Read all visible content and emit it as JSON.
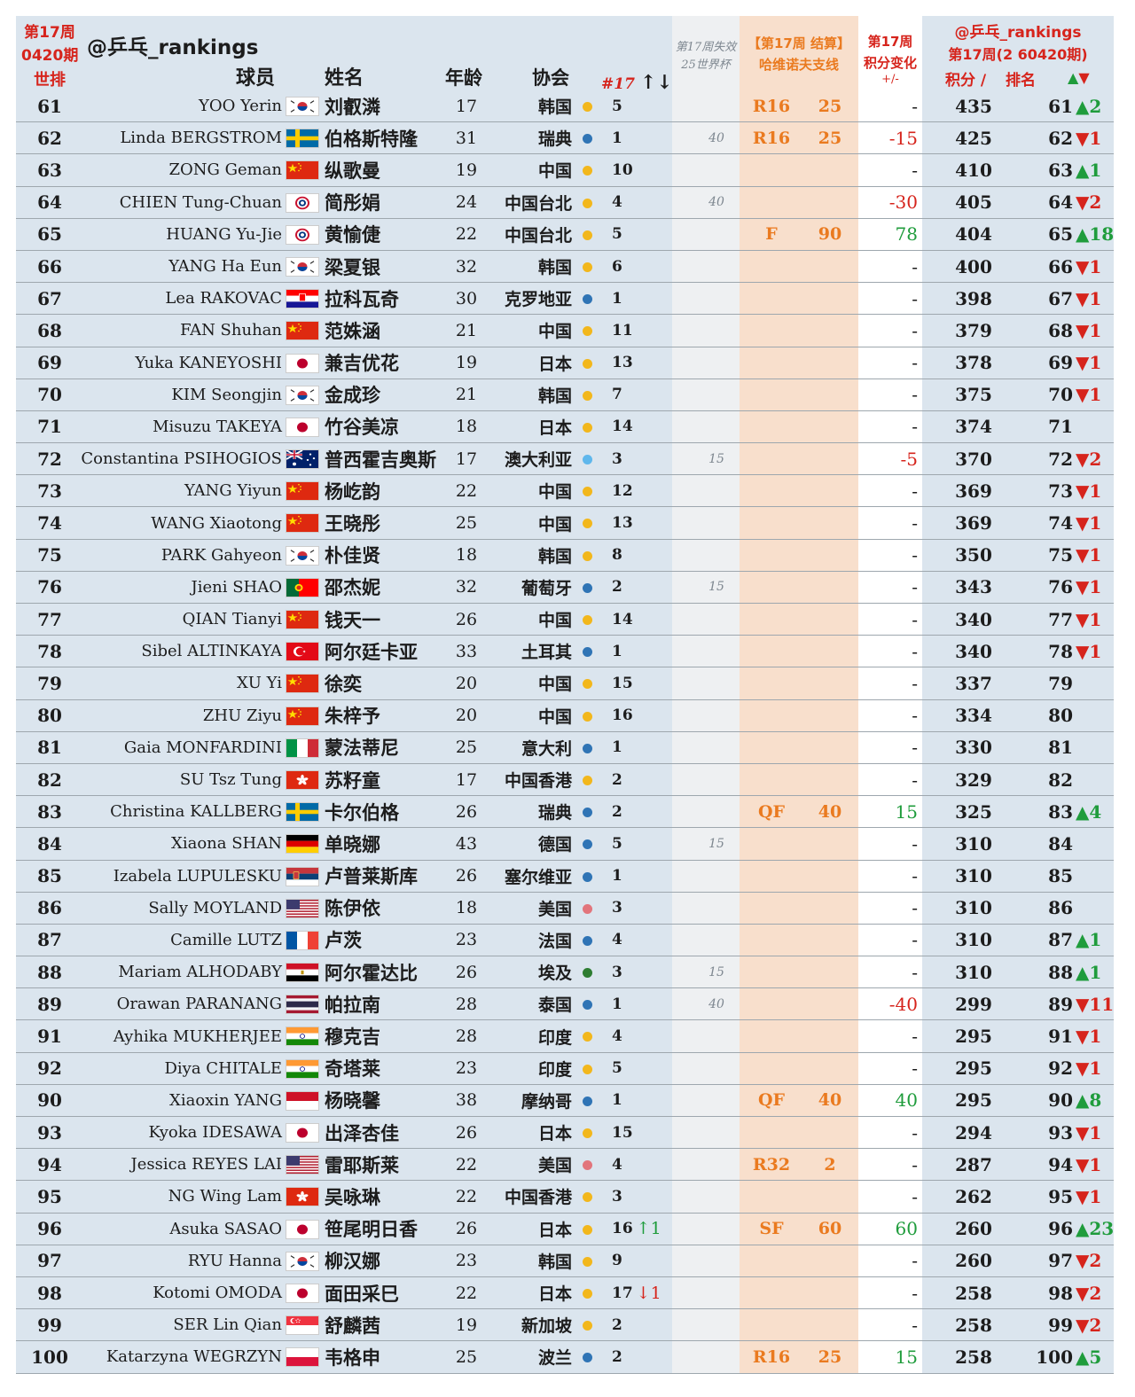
{
  "header": {
    "week_line1": "第17周",
    "week_line2": "0420期",
    "world_rank": "世排",
    "handle": "@乒乓_rankings",
    "player": "球员",
    "name": "姓名",
    "age": "年龄",
    "association": "协会",
    "count_hash": "#17",
    "count_arrows": "↑↓",
    "lost_line1": "第17周失效",
    "lost_line2": "25世界杯",
    "result_line1": "【第17周 结算】",
    "result_line2": "哈维诺夫支线",
    "change_line1": "第17周",
    "change_line2": "积分变化",
    "change_line3": "+/-",
    "new_line1": "@乒乓_rankings",
    "new_line2": "第17周(2 60420期)",
    "new_points": "积分 /",
    "new_rank": "排名",
    "new_arrows": "▲▼"
  },
  "colors": {
    "red": "#d6241c",
    "orange": "#ea7a1f",
    "green": "#1f9c3c",
    "row_bg": "#dbe5ee",
    "result_bg": "#f8dfcc",
    "dot_yellow": "#f2b71c",
    "dot_blue": "#2f74b5",
    "dot_lightblue": "#5fb7ec",
    "dot_pink": "#e2757c",
    "dot_green": "#2e7d32"
  },
  "rows": [
    {
      "rank": "61",
      "en": "YOO Yerin",
      "flag": "kr",
      "cn": "刘叡潾",
      "age": "17",
      "assoc": "韩国",
      "dot": "yellow",
      "cnt": "5",
      "ch": "",
      "chdir": "",
      "lost": "",
      "round": "R16",
      "rpts": "25",
      "change": "-",
      "cdir": "",
      "pts": "435",
      "nrank": "61",
      "mv": "▲2",
      "mdir": "up"
    },
    {
      "rank": "62",
      "en": "Linda BERGSTROM",
      "flag": "se",
      "cn": "伯格斯特隆",
      "age": "31",
      "assoc": "瑞典",
      "dot": "blue",
      "cnt": "1",
      "ch": "",
      "chdir": "",
      "lost": "40",
      "round": "R16",
      "rpts": "25",
      "change": "-15",
      "cdir": "down",
      "pts": "425",
      "nrank": "62",
      "mv": "▼1",
      "mdir": "down"
    },
    {
      "rank": "63",
      "en": "ZONG Geman",
      "flag": "cn",
      "cn": "纵歌曼",
      "age": "19",
      "assoc": "中国",
      "dot": "yellow",
      "cnt": "10",
      "ch": "",
      "chdir": "",
      "lost": "",
      "round": "",
      "rpts": "",
      "change": "-",
      "cdir": "",
      "pts": "410",
      "nrank": "63",
      "mv": "▲1",
      "mdir": "up"
    },
    {
      "rank": "64",
      "en": "CHIEN Tung-Chuan",
      "flag": "tpe",
      "cn": "简彤娟",
      "age": "24",
      "assoc": "中国台北",
      "dot": "yellow",
      "cnt": "4",
      "ch": "",
      "chdir": "",
      "lost": "40",
      "round": "",
      "rpts": "",
      "change": "-30",
      "cdir": "down",
      "pts": "405",
      "nrank": "64",
      "mv": "▼2",
      "mdir": "down"
    },
    {
      "rank": "65",
      "en": "HUANG Yu-Jie",
      "flag": "tpe",
      "cn": "黄愉倢",
      "age": "22",
      "assoc": "中国台北",
      "dot": "yellow",
      "cnt": "5",
      "ch": "",
      "chdir": "",
      "lost": "",
      "round": "F",
      "rpts": "90",
      "change": "78",
      "cdir": "up",
      "pts": "404",
      "nrank": "65",
      "mv": "▲18",
      "mdir": "up"
    },
    {
      "rank": "66",
      "en": "YANG Ha Eun",
      "flag": "kr",
      "cn": "梁夏银",
      "age": "32",
      "assoc": "韩国",
      "dot": "yellow",
      "cnt": "6",
      "ch": "",
      "chdir": "",
      "lost": "",
      "round": "",
      "rpts": "",
      "change": "-",
      "cdir": "",
      "pts": "400",
      "nrank": "66",
      "mv": "▼1",
      "mdir": "down"
    },
    {
      "rank": "67",
      "en": "Lea RAKOVAC",
      "flag": "hr",
      "cn": "拉科瓦奇",
      "age": "30",
      "assoc": "克罗地亚",
      "dot": "blue",
      "cnt": "1",
      "ch": "",
      "chdir": "",
      "lost": "",
      "round": "",
      "rpts": "",
      "change": "-",
      "cdir": "",
      "pts": "398",
      "nrank": "67",
      "mv": "▼1",
      "mdir": "down"
    },
    {
      "rank": "68",
      "en": "FAN Shuhan",
      "flag": "cn",
      "cn": "范姝涵",
      "age": "21",
      "assoc": "中国",
      "dot": "yellow",
      "cnt": "11",
      "ch": "",
      "chdir": "",
      "lost": "",
      "round": "",
      "rpts": "",
      "change": "-",
      "cdir": "",
      "pts": "379",
      "nrank": "68",
      "mv": "▼1",
      "mdir": "down"
    },
    {
      "rank": "69",
      "en": "Yuka KANEYOSHI",
      "flag": "jp",
      "cn": "兼吉优花",
      "age": "19",
      "assoc": "日本",
      "dot": "yellow",
      "cnt": "13",
      "ch": "",
      "chdir": "",
      "lost": "",
      "round": "",
      "rpts": "",
      "change": "-",
      "cdir": "",
      "pts": "378",
      "nrank": "69",
      "mv": "▼1",
      "mdir": "down"
    },
    {
      "rank": "70",
      "en": "KIM Seongjin",
      "flag": "kr",
      "cn": "金成珍",
      "age": "21",
      "assoc": "韩国",
      "dot": "yellow",
      "cnt": "7",
      "ch": "",
      "chdir": "",
      "lost": "",
      "round": "",
      "rpts": "",
      "change": "-",
      "cdir": "",
      "pts": "375",
      "nrank": "70",
      "mv": "▼1",
      "mdir": "down"
    },
    {
      "rank": "71",
      "en": "Misuzu TAKEYA",
      "flag": "jp",
      "cn": "竹谷美凉",
      "age": "18",
      "assoc": "日本",
      "dot": "yellow",
      "cnt": "14",
      "ch": "",
      "chdir": "",
      "lost": "",
      "round": "",
      "rpts": "",
      "change": "-",
      "cdir": "",
      "pts": "374",
      "nrank": "71",
      "mv": "",
      "mdir": ""
    },
    {
      "rank": "72",
      "en": "Constantina PSIHOGIOS",
      "flag": "au",
      "cn": "普西霍吉奥斯",
      "age": "17",
      "assoc": "澳大利亚",
      "dot": "lightblue",
      "cnt": "3",
      "ch": "",
      "chdir": "",
      "lost": "15",
      "round": "",
      "rpts": "",
      "change": "-5",
      "cdir": "down",
      "pts": "370",
      "nrank": "72",
      "mv": "▼2",
      "mdir": "down"
    },
    {
      "rank": "73",
      "en": "YANG Yiyun",
      "flag": "cn",
      "cn": "杨屹韵",
      "age": "22",
      "assoc": "中国",
      "dot": "yellow",
      "cnt": "12",
      "ch": "",
      "chdir": "",
      "lost": "",
      "round": "",
      "rpts": "",
      "change": "-",
      "cdir": "",
      "pts": "369",
      "nrank": "73",
      "mv": "▼1",
      "mdir": "down"
    },
    {
      "rank": "74",
      "en": "WANG Xiaotong",
      "flag": "cn",
      "cn": "王晓彤",
      "age": "25",
      "assoc": "中国",
      "dot": "yellow",
      "cnt": "13",
      "ch": "",
      "chdir": "",
      "lost": "",
      "round": "",
      "rpts": "",
      "change": "-",
      "cdir": "",
      "pts": "369",
      "nrank": "74",
      "mv": "▼1",
      "mdir": "down"
    },
    {
      "rank": "75",
      "en": "PARK Gahyeon",
      "flag": "kr",
      "cn": "朴佳贤",
      "age": "18",
      "assoc": "韩国",
      "dot": "yellow",
      "cnt": "8",
      "ch": "",
      "chdir": "",
      "lost": "",
      "round": "",
      "rpts": "",
      "change": "-",
      "cdir": "",
      "pts": "350",
      "nrank": "75",
      "mv": "▼1",
      "mdir": "down"
    },
    {
      "rank": "76",
      "en": "Jieni SHAO",
      "flag": "pt",
      "cn": "邵杰妮",
      "age": "32",
      "assoc": "葡萄牙",
      "dot": "blue",
      "cnt": "2",
      "ch": "",
      "chdir": "",
      "lost": "15",
      "round": "",
      "rpts": "",
      "change": "-",
      "cdir": "",
      "pts": "343",
      "nrank": "76",
      "mv": "▼1",
      "mdir": "down"
    },
    {
      "rank": "77",
      "en": "QIAN Tianyi",
      "flag": "cn",
      "cn": "钱天一",
      "age": "26",
      "assoc": "中国",
      "dot": "yellow",
      "cnt": "14",
      "ch": "",
      "chdir": "",
      "lost": "",
      "round": "",
      "rpts": "",
      "change": "-",
      "cdir": "",
      "pts": "340",
      "nrank": "77",
      "mv": "▼1",
      "mdir": "down"
    },
    {
      "rank": "78",
      "en": "Sibel ALTINKAYA",
      "flag": "tr",
      "cn": "阿尔廷卡亚",
      "age": "33",
      "assoc": "土耳其",
      "dot": "blue",
      "cnt": "1",
      "ch": "",
      "chdir": "",
      "lost": "",
      "round": "",
      "rpts": "",
      "change": "-",
      "cdir": "",
      "pts": "340",
      "nrank": "78",
      "mv": "▼1",
      "mdir": "down"
    },
    {
      "rank": "79",
      "en": "XU Yi",
      "flag": "cn",
      "cn": "徐奕",
      "age": "20",
      "assoc": "中国",
      "dot": "yellow",
      "cnt": "15",
      "ch": "",
      "chdir": "",
      "lost": "",
      "round": "",
      "rpts": "",
      "change": "-",
      "cdir": "",
      "pts": "337",
      "nrank": "79",
      "mv": "",
      "mdir": ""
    },
    {
      "rank": "80",
      "en": "ZHU Ziyu",
      "flag": "cn",
      "cn": "朱梓予",
      "age": "20",
      "assoc": "中国",
      "dot": "yellow",
      "cnt": "16",
      "ch": "",
      "chdir": "",
      "lost": "",
      "round": "",
      "rpts": "",
      "change": "-",
      "cdir": "",
      "pts": "334",
      "nrank": "80",
      "mv": "",
      "mdir": ""
    },
    {
      "rank": "81",
      "en": "Gaia MONFARDINI",
      "flag": "it",
      "cn": "蒙法蒂尼",
      "age": "25",
      "assoc": "意大利",
      "dot": "blue",
      "cnt": "1",
      "ch": "",
      "chdir": "",
      "lost": "",
      "round": "",
      "rpts": "",
      "change": "-",
      "cdir": "",
      "pts": "330",
      "nrank": "81",
      "mv": "",
      "mdir": ""
    },
    {
      "rank": "82",
      "en": "SU Tsz Tung",
      "flag": "hk",
      "cn": "苏籽童",
      "age": "17",
      "assoc": "中国香港",
      "dot": "yellow",
      "cnt": "2",
      "ch": "",
      "chdir": "",
      "lost": "",
      "round": "",
      "rpts": "",
      "change": "-",
      "cdir": "",
      "pts": "329",
      "nrank": "82",
      "mv": "",
      "mdir": ""
    },
    {
      "rank": "83",
      "en": "Christina KALLBERG",
      "flag": "se",
      "cn": "卡尔伯格",
      "age": "26",
      "assoc": "瑞典",
      "dot": "blue",
      "cnt": "2",
      "ch": "",
      "chdir": "",
      "lost": "",
      "round": "QF",
      "rpts": "40",
      "change": "15",
      "cdir": "up",
      "pts": "325",
      "nrank": "83",
      "mv": "▲4",
      "mdir": "up"
    },
    {
      "rank": "84",
      "en": "Xiaona SHAN",
      "flag": "de",
      "cn": "单晓娜",
      "age": "43",
      "assoc": "德国",
      "dot": "blue",
      "cnt": "5",
      "ch": "",
      "chdir": "",
      "lost": "15",
      "round": "",
      "rpts": "",
      "change": "-",
      "cdir": "",
      "pts": "310",
      "nrank": "84",
      "mv": "",
      "mdir": ""
    },
    {
      "rank": "85",
      "en": "Izabela LUPULESKU",
      "flag": "rs",
      "cn": "卢普莱斯库",
      "age": "26",
      "assoc": "塞尔维亚",
      "dot": "blue",
      "cnt": "1",
      "ch": "",
      "chdir": "",
      "lost": "",
      "round": "",
      "rpts": "",
      "change": "-",
      "cdir": "",
      "pts": "310",
      "nrank": "85",
      "mv": "",
      "mdir": ""
    },
    {
      "rank": "86",
      "en": "Sally MOYLAND",
      "flag": "us",
      "cn": "陈伊依",
      "age": "18",
      "assoc": "美国",
      "dot": "pink",
      "cnt": "3",
      "ch": "",
      "chdir": "",
      "lost": "",
      "round": "",
      "rpts": "",
      "change": "-",
      "cdir": "",
      "pts": "310",
      "nrank": "86",
      "mv": "",
      "mdir": ""
    },
    {
      "rank": "87",
      "en": "Camille LUTZ",
      "flag": "fr",
      "cn": "卢茨",
      "age": "23",
      "assoc": "法国",
      "dot": "blue",
      "cnt": "4",
      "ch": "",
      "chdir": "",
      "lost": "",
      "round": "",
      "rpts": "",
      "change": "-",
      "cdir": "",
      "pts": "310",
      "nrank": "87",
      "mv": "▲1",
      "mdir": "up"
    },
    {
      "rank": "88",
      "en": "Mariam ALHODABY",
      "flag": "eg",
      "cn": "阿尔霍达比",
      "age": "26",
      "assoc": "埃及",
      "dot": "green",
      "cnt": "3",
      "ch": "",
      "chdir": "",
      "lost": "15",
      "round": "",
      "rpts": "",
      "change": "-",
      "cdir": "",
      "pts": "310",
      "nrank": "88",
      "mv": "▲1",
      "mdir": "up"
    },
    {
      "rank": "89",
      "en": "Orawan PARANANG",
      "flag": "th",
      "cn": "帕拉南",
      "age": "28",
      "assoc": "泰国",
      "dot": "blue",
      "cnt": "1",
      "ch": "",
      "chdir": "",
      "lost": "40",
      "round": "",
      "rpts": "",
      "change": "-40",
      "cdir": "down",
      "pts": "299",
      "nrank": "89",
      "mv": "▼11",
      "mdir": "down"
    },
    {
      "rank": "91",
      "en": "Ayhika MUKHERJEE",
      "flag": "in",
      "cn": "穆克吉",
      "age": "28",
      "assoc": "印度",
      "dot": "yellow",
      "cnt": "4",
      "ch": "",
      "chdir": "",
      "lost": "",
      "round": "",
      "rpts": "",
      "change": "-",
      "cdir": "",
      "pts": "295",
      "nrank": "91",
      "mv": "▼1",
      "mdir": "down"
    },
    {
      "rank": "92",
      "en": "Diya CHITALE",
      "flag": "in",
      "cn": "奇塔莱",
      "age": "23",
      "assoc": "印度",
      "dot": "yellow",
      "cnt": "5",
      "ch": "",
      "chdir": "",
      "lost": "",
      "round": "",
      "rpts": "",
      "change": "-",
      "cdir": "",
      "pts": "295",
      "nrank": "92",
      "mv": "▼1",
      "mdir": "down"
    },
    {
      "rank": "90",
      "en": "Xiaoxin YANG",
      "flag": "mc",
      "cn": "杨晓馨",
      "age": "38",
      "assoc": "摩纳哥",
      "dot": "blue",
      "cnt": "1",
      "ch": "",
      "chdir": "",
      "lost": "",
      "round": "QF",
      "rpts": "40",
      "change": "40",
      "cdir": "up",
      "pts": "295",
      "nrank": "90",
      "mv": "▲8",
      "mdir": "up"
    },
    {
      "rank": "93",
      "en": "Kyoka IDESAWA",
      "flag": "jp",
      "cn": "出泽杏佳",
      "age": "26",
      "assoc": "日本",
      "dot": "yellow",
      "cnt": "15",
      "ch": "",
      "chdir": "",
      "lost": "",
      "round": "",
      "rpts": "",
      "change": "-",
      "cdir": "",
      "pts": "294",
      "nrank": "93",
      "mv": "▼1",
      "mdir": "down"
    },
    {
      "rank": "94",
      "en": "Jessica REYES LAI",
      "flag": "us",
      "cn": "雷耶斯莱",
      "age": "22",
      "assoc": "美国",
      "dot": "pink",
      "cnt": "4",
      "ch": "",
      "chdir": "",
      "lost": "",
      "round": "R32",
      "rpts": "2",
      "change": "-",
      "cdir": "",
      "pts": "287",
      "nrank": "94",
      "mv": "▼1",
      "mdir": "down"
    },
    {
      "rank": "95",
      "en": "NG Wing Lam",
      "flag": "hk",
      "cn": "吴咏琳",
      "age": "22",
      "assoc": "中国香港",
      "dot": "yellow",
      "cnt": "3",
      "ch": "",
      "chdir": "",
      "lost": "",
      "round": "",
      "rpts": "",
      "change": "-",
      "cdir": "",
      "pts": "262",
      "nrank": "95",
      "mv": "▼1",
      "mdir": "down"
    },
    {
      "rank": "96",
      "en": "Asuka SASAO",
      "flag": "jp",
      "cn": "笹尾明日香",
      "age": "26",
      "assoc": "日本",
      "dot": "yellow",
      "cnt": "16",
      "ch": "↑1",
      "chdir": "up",
      "lost": "",
      "round": "SF",
      "rpts": "60",
      "change": "60",
      "cdir": "up",
      "pts": "260",
      "nrank": "96",
      "mv": "▲23",
      "mdir": "up"
    },
    {
      "rank": "97",
      "en": "RYU Hanna",
      "flag": "kr",
      "cn": "柳汉娜",
      "age": "23",
      "assoc": "韩国",
      "dot": "yellow",
      "cnt": "9",
      "ch": "",
      "chdir": "",
      "lost": "",
      "round": "",
      "rpts": "",
      "change": "-",
      "cdir": "",
      "pts": "260",
      "nrank": "97",
      "mv": "▼2",
      "mdir": "down"
    },
    {
      "rank": "98",
      "en": "Kotomi OMODA",
      "flag": "jp",
      "cn": "面田采巳",
      "age": "22",
      "assoc": "日本",
      "dot": "yellow",
      "cnt": "17",
      "ch": "↓1",
      "chdir": "down",
      "lost": "",
      "round": "",
      "rpts": "",
      "change": "-",
      "cdir": "",
      "pts": "258",
      "nrank": "98",
      "mv": "▼2",
      "mdir": "down"
    },
    {
      "rank": "99",
      "en": "SER Lin Qian",
      "flag": "sg",
      "cn": "舒麟茜",
      "age": "19",
      "assoc": "新加坡",
      "dot": "yellow",
      "cnt": "2",
      "ch": "",
      "chdir": "",
      "lost": "",
      "round": "",
      "rpts": "",
      "change": "-",
      "cdir": "",
      "pts": "258",
      "nrank": "99",
      "mv": "▼2",
      "mdir": "down"
    },
    {
      "rank": "100",
      "en": "Katarzyna WEGRZYN",
      "flag": "pl",
      "cn": "韦格申",
      "age": "25",
      "assoc": "波兰",
      "dot": "blue",
      "cnt": "2",
      "ch": "",
      "chdir": "",
      "lost": "",
      "round": "R16",
      "rpts": "25",
      "change": "15",
      "cdir": "up",
      "pts": "258",
      "nrank": "100",
      "mv": "▲5",
      "mdir": "up"
    }
  ]
}
